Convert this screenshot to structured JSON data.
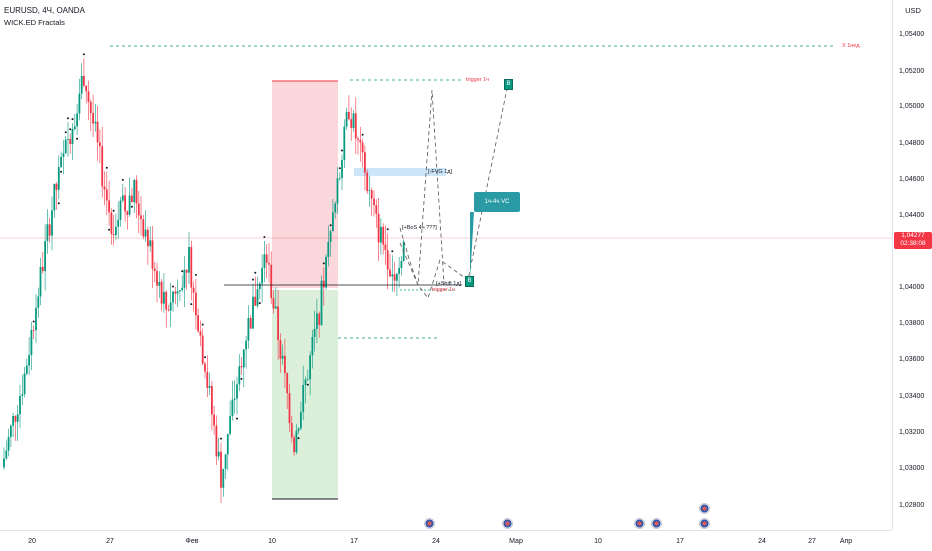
{
  "header": {
    "title": "EURUSD, 4Ч, OANDA",
    "indicator": "WICK.ED Fractals"
  },
  "price_axis": {
    "currency": "USD",
    "ticks": [
      "1,05400",
      "1,05200",
      "1,05000",
      "1,04800",
      "1,04600",
      "1,04400",
      "1,04000",
      "1,03800",
      "1,03600",
      "1,03400",
      "1,03200",
      "1,03000",
      "1,02800"
    ],
    "current_price": "1,04277",
    "countdown": "02:38:08"
  },
  "time_axis": {
    "ticks": [
      "20",
      "27",
      "Фев",
      "10",
      "17",
      "24",
      "Мар",
      "10",
      "17",
      "24",
      "27",
      "Апр"
    ]
  },
  "annotations": {
    "weekly_high": "X 1нед.",
    "trigger_top": "trigger 1ч",
    "fvg": "[-FVG 1д]",
    "bos": "[+BoS 4ч ???]",
    "shift": "[+Shift 1д]",
    "trigger_bottom": "trigger 1ч",
    "vc_box": "1ч-4ч VC",
    "badge_letter": "B"
  },
  "chart_data": {
    "type": "candlestick",
    "symbol": "EURUSD",
    "timeframe": "4Ч",
    "source": "OANDA",
    "y_range": [
      1.0272,
      1.0552
    ],
    "current_price": 1.04277,
    "colors": {
      "up": "#089981",
      "down": "#f23645",
      "current": "#f23645"
    },
    "segments": [
      {
        "from": 1.0295,
        "to": 1.035,
        "n": 10
      },
      {
        "from": 1.035,
        "to": 1.045,
        "n": 12
      },
      {
        "from": 1.045,
        "to": 1.053,
        "n": 14
      },
      {
        "from": 1.053,
        "to": 1.044,
        "n": 12
      },
      {
        "from": 1.044,
        "to": 1.046,
        "n": 10
      },
      {
        "from": 1.046,
        "to": 1.039,
        "n": 14
      },
      {
        "from": 1.039,
        "to": 1.042,
        "n": 10
      },
      {
        "from": 1.042,
        "to": 1.029,
        "n": 14
      },
      {
        "from": 1.029,
        "to": 1.037,
        "n": 10
      },
      {
        "from": 1.037,
        "to": 1.042,
        "n": 10
      },
      {
        "from": 1.042,
        "to": 1.031,
        "n": 12
      },
      {
        "from": 1.031,
        "to": 1.038,
        "n": 10
      },
      {
        "from": 1.038,
        "to": 1.045,
        "n": 8
      },
      {
        "from": 1.045,
        "to": 1.051,
        "n": 6
      },
      {
        "from": 1.051,
        "to": 1.044,
        "n": 12
      },
      {
        "from": 1.044,
        "to": 1.041,
        "n": 8
      },
      {
        "from": 1.041,
        "to": 1.0427,
        "n": 4
      }
    ],
    "levels": {
      "weekly_high": 1.0533,
      "trigger_top": 1.0513,
      "fvg_top": 1.0468,
      "fvg_bottom": 1.0462,
      "shift": 1.04,
      "trigger_bottom": 1.0396,
      "mid_dashed": 1.0372,
      "range_low": 1.0283,
      "range_mid": 1.0402,
      "range_high": 1.0513
    }
  }
}
